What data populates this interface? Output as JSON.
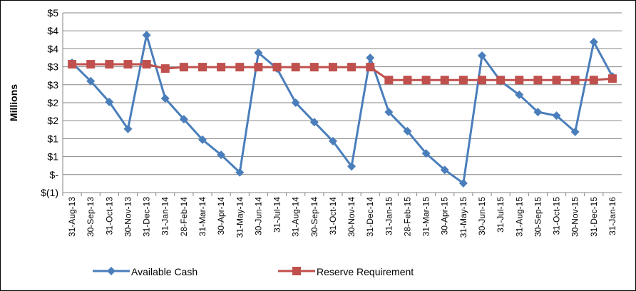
{
  "chart_data": {
    "type": "line",
    "y_label": "Millions",
    "categories": [
      "31-Aug-13",
      "30-Sep-13",
      "31-Oct-13",
      "30-Nov-13",
      "31-Dec-13",
      "31-Jan-14",
      "28-Feb-14",
      "31-Mar-14",
      "30-Apr-14",
      "31-May-14",
      "30-Jun-14",
      "31-Jul-14",
      "31-Aug-14",
      "30-Sep-14",
      "31-Oct-14",
      "30-Nov-14",
      "31-Dec-14",
      "31-Jan-15",
      "28-Feb-15",
      "31-Mar-15",
      "30-Apr-15",
      "31-May-15",
      "30-Jun-15",
      "31-Jul-15",
      "31-Aug-15",
      "30-Sep-15",
      "31-Oct-15",
      "30-Nov-15",
      "31-Dec-15",
      "31-Jan-16"
    ],
    "series": [
      {
        "name": "Available Cash",
        "color": "#4a7ebb",
        "marker": "diamond",
        "values": [
          3.11,
          2.6,
          2.02,
          1.27,
          3.88,
          2.12,
          1.54,
          0.97,
          0.55,
          0.06,
          3.39,
          2.95,
          2.0,
          1.46,
          0.93,
          0.23,
          3.25,
          1.74,
          1.21,
          0.59,
          0.13,
          -0.24,
          3.31,
          2.6,
          2.22,
          1.74,
          1.64,
          1.19,
          3.69,
          2.73
        ]
      },
      {
        "name": "Reserve Requirement",
        "color": "#c0504d",
        "marker": "square",
        "values": [
          3.07,
          3.07,
          3.07,
          3.07,
          3.07,
          2.95,
          2.99,
          2.99,
          2.99,
          2.99,
          2.99,
          2.99,
          2.99,
          2.99,
          2.99,
          2.99,
          2.99,
          2.63,
          2.63,
          2.63,
          2.63,
          2.63,
          2.63,
          2.63,
          2.63,
          2.63,
          2.63,
          2.63,
          2.63,
          2.67
        ]
      }
    ],
    "ylim": [
      -0.5,
      4.5
    ],
    "yticks": [
      {
        "value": -0.5,
        "label": "$(1)"
      },
      {
        "value": 0,
        "label": "$-"
      },
      {
        "value": 0.5,
        "label": "$1"
      },
      {
        "value": 1,
        "label": "$1"
      },
      {
        "value": 1.5,
        "label": "$2"
      },
      {
        "value": 2,
        "label": "$2"
      },
      {
        "value": 2.5,
        "label": "$3"
      },
      {
        "value": 3,
        "label": "$3"
      },
      {
        "value": 3.5,
        "label": "$4"
      },
      {
        "value": 4,
        "label": "$4"
      },
      {
        "value": 4.5,
        "label": "$5"
      }
    ],
    "grid": true
  }
}
